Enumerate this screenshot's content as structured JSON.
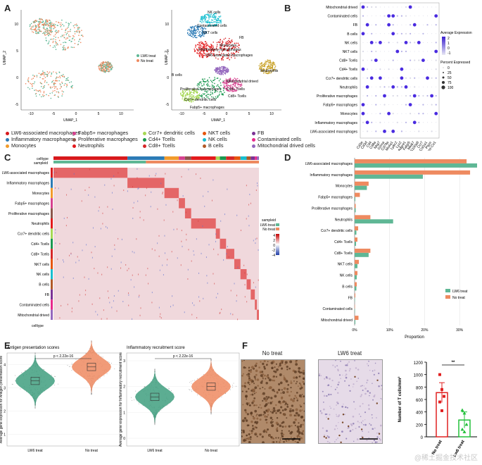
{
  "panels": {
    "a": "A",
    "b": "B",
    "c": "C",
    "d": "D",
    "e": "E",
    "f": "F"
  },
  "umap": {
    "xlabel": "UMAP_1",
    "ylabel": "UMAP_2",
    "xticks": [
      "-10",
      "-5",
      "0",
      "5",
      "10"
    ],
    "yticks": [
      "10",
      "5",
      "0",
      "-5"
    ],
    "legend": [
      {
        "label": "LW6 treat",
        "color": "#5fb795"
      },
      {
        "label": "No treat",
        "color": "#ee8a60"
      }
    ],
    "cluster_labels": [
      "NK cells",
      "Contaminated cells",
      "NKT cells",
      "FB",
      "Monocytes",
      "Inflammatory macrophages",
      "LW6-associated macrophages",
      "Mitochondrial drived",
      "Neutrophils",
      "B cells",
      "Proliferative macrophages",
      "Ccr7+ dendritic cells",
      "Cd4+ Tcells",
      "Cd8+ Tcells",
      "Fabp5+ macrophages"
    ]
  },
  "celltypes_legend": [
    {
      "label": "LW6-associated macrophages",
      "color": "#d7191c"
    },
    {
      "label": "Inflammatory macrophages",
      "color": "#2c7bb6"
    },
    {
      "label": "Monocytes",
      "color": "#f29b2b"
    },
    {
      "label": "Fabp5+ macrophages",
      "color": "#d7418f"
    },
    {
      "label": "Proliferative macrophages",
      "color": "#8c564b"
    },
    {
      "label": "Neutrophils",
      "color": "#e31a1c"
    },
    {
      "label": "Ccr7+ dendritic cells",
      "color": "#a6d854"
    },
    {
      "label": "Cd4+ Tcells",
      "color": "#1a9850"
    },
    {
      "label": "Cd8+ Tcells",
      "color": "#d62728"
    },
    {
      "label": "NKT cells",
      "color": "#e6550d"
    },
    {
      "label": "NK cells",
      "color": "#17becf"
    },
    {
      "label": "B cells",
      "color": "#b15928"
    },
    {
      "label": "FB",
      "color": "#7b3294"
    },
    {
      "label": "Contaminated cells",
      "color": "#e7298a"
    },
    {
      "label": "Mitochondrial drived cells",
      "color": "#9467bd"
    }
  ],
  "dotplot": {
    "rows": [
      "Mitochondrial drived",
      "Contaminated cells",
      "FB",
      "B cells",
      "NK cells",
      "NKT cells",
      "Cd8+ Tcells",
      "Cd4+ Tcells",
      "Ccr7+ dendritic cells",
      "Neutrophils",
      "Proliferative macrophages",
      "Fabp5+ macrophages",
      "Monocytes",
      "Inflammatory macrophages",
      "LW6-associated macrophages"
    ],
    "genes": [
      "Cd3e",
      "Cd3d",
      "Cd4",
      "Cd8a",
      "Nkg7",
      "Gzma",
      "Cd79a",
      "Ms4a1",
      "Ly6c2",
      "Lyz2",
      "Adgre1",
      "Fabp5",
      "Mki67",
      "S100a8",
      "Ccr7",
      "Col1a1",
      "Ptprc",
      "mt-Co1"
    ],
    "legend_avg": "Average Expression",
    "avg_ticks": [
      "2",
      "1",
      "0",
      "-1"
    ],
    "legend_pct": "Percent Expressed",
    "pct_ticks": [
      "0",
      "25",
      "50",
      "75",
      "100"
    ]
  },
  "heatmap": {
    "header1": "celltype",
    "header2": "sampleid",
    "rows": [
      "LW6-associated macrophages",
      "Inflammatory macrophages",
      "Monocytes",
      "Fabp5+ macrophages",
      "Proliferative macrophages",
      "Neutrophils",
      "Ccr7+ dendritic cells",
      "Cd4+ Tcells",
      "Cd8+ Tcells",
      "NKT cells",
      "NK cells",
      "B cells",
      "FB",
      "Contaminated cells",
      "Mitochondrial drived"
    ],
    "legend_sample_title": "sampleid",
    "legend_sample": [
      "LW6 treat",
      "No treat"
    ],
    "scale_ticks": [
      "4",
      "2",
      "0",
      "-2",
      "-4"
    ],
    "bottom_label": "celltype"
  },
  "chart_data": [
    {
      "type": "bar",
      "title": "",
      "xlabel": "Proportion",
      "ylabel": "",
      "xlim": [
        0,
        0.35
      ],
      "xticks": [
        "0%",
        "10%",
        "20%",
        "30%"
      ],
      "categories": [
        "LW6-associated macrophages",
        "Inflammatory macrophages",
        "Monocytes",
        "Fabp5+ macrophages",
        "Proliferative macrophages",
        "Neutrophils",
        "Ccr7+ dendritic cells",
        "Cd4+ Tcells",
        "Cd8+ Tcells",
        "NKT cells",
        "NK cells",
        "B cells",
        "FB",
        "Contaminated cells",
        "Mitochondrial drived"
      ],
      "series": [
        {
          "name": "No treat",
          "color": "#ee8a60",
          "values": [
            0.32,
            0.33,
            0.04,
            0.015,
            0.003,
            0.045,
            0.01,
            0.008,
            0.045,
            0.012,
            0.008,
            0.006,
            0.002,
            0.001,
            0.011
          ]
        },
        {
          "name": "LW6 treat",
          "color": "#5fb795",
          "values": [
            0.35,
            0.195,
            0.035,
            0.002,
            0.003,
            0.11,
            0.005,
            0.004,
            0.04,
            0.008,
            0.006,
            0.005,
            0.001,
            0.001,
            0.002
          ]
        }
      ],
      "legend": "right"
    },
    {
      "type": "violin",
      "title": "Antigen presentation scores",
      "ylabel": "Average gene expression for Antigen presentation score",
      "categories": [
        "LW6 treat",
        "No treat"
      ],
      "medians": [
        3.3,
        3.9
      ],
      "yticks": [
        "4",
        "3",
        "2",
        "1"
      ],
      "pvalue": "p < 2.22e-16",
      "colors": [
        "#3f9f7f",
        "#ee8a60"
      ]
    },
    {
      "type": "violin",
      "title": "Inflammatory recruitment score",
      "ylabel": "Average gene expression for Inflammatory recruitment score",
      "categories": [
        "LW6 treat",
        "No treat"
      ],
      "medians": [
        1.6,
        2.0
      ],
      "yticks": [
        "3",
        "2",
        "1",
        "0"
      ],
      "pvalue": "p < 2.22e-16",
      "colors": [
        "#3f9f7f",
        "#ee8a60"
      ]
    },
    {
      "type": "bar",
      "title": "",
      "ylabel": "Number of T cells/mm²",
      "categories": [
        "No treat",
        "Lw6 treat"
      ],
      "values": [
        710,
        270
      ],
      "errors": [
        160,
        130
      ],
      "points": [
        [
          1000,
          760,
          650,
          560,
          420
        ],
        [
          430,
          380,
          200,
          120,
          80
        ]
      ],
      "ylim": [
        0,
        1200
      ],
      "yticks": [
        "1200",
        "1000",
        "800",
        "600",
        "400",
        "200",
        "0"
      ],
      "significance": "**",
      "colors": [
        "#e02020",
        "#22c03a"
      ]
    }
  ],
  "histology": {
    "left_title": "No treat",
    "right_title": "LW6 treat"
  },
  "watermark": "@稀土掘金技术社区"
}
